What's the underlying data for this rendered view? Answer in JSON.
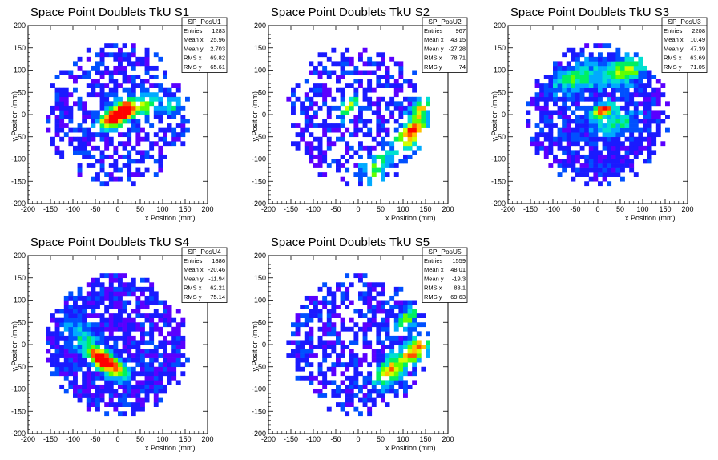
{
  "chart_data": [
    {
      "type": "heatmap",
      "title": "Space Point Doublets TkU S1",
      "xlabel": "x Position (mm)",
      "ylabel": "y Position (mm)",
      "xlim": [
        -200,
        200
      ],
      "ylim": [
        -200,
        200
      ],
      "xticks": [
        -200,
        -150,
        -100,
        -50,
        0,
        50,
        100,
        150,
        200
      ],
      "yticks": [
        -200,
        -150,
        -100,
        -50,
        0,
        50,
        100,
        150,
        200
      ],
      "stats": {
        "name": "SP_PosU1",
        "rows": [
          {
            "label": "Entries",
            "value": "1283"
          },
          {
            "label": "Mean x",
            "value": "25.96"
          },
          {
            "label": "Mean y",
            "value": "2.703"
          },
          {
            "label": "RMS x",
            "value": "69.82"
          },
          {
            "label": "RMS y",
            "value": "65.61"
          }
        ]
      },
      "density": {
        "occupancy": 0.58,
        "radius": 160,
        "hotspots": [
          {
            "x": 10,
            "y": 10,
            "strength": 1.0,
            "spread": 25
          },
          {
            "x": -10,
            "y": -10,
            "strength": 0.8,
            "spread": 22
          },
          {
            "x": 60,
            "y": 20,
            "strength": 0.5,
            "spread": 25
          },
          {
            "x": 120,
            "y": 20,
            "strength": 0.35,
            "spread": 20
          }
        ],
        "band_angle": 30,
        "seed": 11
      }
    },
    {
      "type": "heatmap",
      "title": "Space Point Doublets TkU S2",
      "xlabel": "x Position (mm)",
      "ylabel": "y Position (mm)",
      "xlim": [
        -200,
        200
      ],
      "ylim": [
        -200,
        200
      ],
      "xticks": [
        -200,
        -150,
        -100,
        -50,
        0,
        50,
        100,
        150,
        200
      ],
      "yticks": [
        -200,
        -150,
        -100,
        -50,
        0,
        50,
        100,
        150,
        200
      ],
      "stats": {
        "name": "SP_PosU2",
        "rows": [
          {
            "label": "Entries",
            "value": "967"
          },
          {
            "label": "Mean x",
            "value": "43.15"
          },
          {
            "label": "Mean y",
            "value": "-27.28"
          },
          {
            "label": "RMS x",
            "value": "78.71"
          },
          {
            "label": "RMS y",
            "value": "74"
          }
        ]
      },
      "density": {
        "occupancy": 0.5,
        "radius": 160,
        "hotspots": [
          {
            "x": 120,
            "y": -40,
            "strength": 0.9,
            "spread": 30
          },
          {
            "x": 140,
            "y": 20,
            "strength": 0.6,
            "spread": 20
          },
          {
            "x": -20,
            "y": 20,
            "strength": 0.7,
            "spread": 18
          },
          {
            "x": 40,
            "y": -120,
            "strength": 0.5,
            "spread": 30
          }
        ],
        "band_angle": 55,
        "seed": 23
      }
    },
    {
      "type": "heatmap",
      "title": "Space Point Doublets TkU S3",
      "xlabel": "x Position (mm)",
      "ylabel": "y Position (mm)",
      "xlim": [
        -200,
        200
      ],
      "ylim": [
        -200,
        200
      ],
      "xticks": [
        -200,
        -150,
        -100,
        -50,
        0,
        50,
        100,
        150,
        200
      ],
      "yticks": [
        -200,
        -150,
        -100,
        -50,
        0,
        50,
        100,
        150,
        200
      ],
      "stats": {
        "name": "SP_PosU3",
        "rows": [
          {
            "label": "Entries",
            "value": "2208"
          },
          {
            "label": "Mean x",
            "value": "10.49"
          },
          {
            "label": "Mean y",
            "value": "47.39"
          },
          {
            "label": "RMS x",
            "value": "63.69"
          },
          {
            "label": "RMS y",
            "value": "71.05"
          }
        ]
      },
      "density": {
        "occupancy": 0.78,
        "radius": 160,
        "hotspots": [
          {
            "x": 10,
            "y": 10,
            "strength": 1.0,
            "spread": 18
          },
          {
            "x": 60,
            "y": 100,
            "strength": 0.6,
            "spread": 35
          },
          {
            "x": -50,
            "y": 80,
            "strength": 0.45,
            "spread": 35
          },
          {
            "x": 40,
            "y": -20,
            "strength": 0.4,
            "spread": 30
          }
        ],
        "band_angle": 20,
        "seed": 37
      }
    },
    {
      "type": "heatmap",
      "title": "Space Point Doublets TkU S4",
      "xlabel": "x Position (mm)",
      "ylabel": "y Position (mm)",
      "xlim": [
        -200,
        200
      ],
      "ylim": [
        -200,
        200
      ],
      "xticks": [
        -200,
        -150,
        -100,
        -50,
        0,
        50,
        100,
        150,
        200
      ],
      "yticks": [
        -200,
        -150,
        -100,
        -50,
        0,
        50,
        100,
        150,
        200
      ],
      "stats": {
        "name": "SP_PosU4",
        "rows": [
          {
            "label": "Entries",
            "value": "1886"
          },
          {
            "label": "Mean x",
            "value": "-20.46"
          },
          {
            "label": "Mean y",
            "value": "-11.94"
          },
          {
            "label": "RMS x",
            "value": "62.21"
          },
          {
            "label": "RMS y",
            "value": "75.14"
          }
        ]
      },
      "density": {
        "occupancy": 0.8,
        "radius": 160,
        "hotspots": [
          {
            "x": -40,
            "y": -30,
            "strength": 1.0,
            "spread": 22
          },
          {
            "x": -10,
            "y": -50,
            "strength": 0.7,
            "spread": 25
          },
          {
            "x": -80,
            "y": 20,
            "strength": 0.3,
            "spread": 30
          }
        ],
        "band_angle": -35,
        "seed": 53
      }
    },
    {
      "type": "heatmap",
      "title": "Space Point Doublets TkU S5",
      "xlabel": "x Position (mm)",
      "ylabel": "y Position (mm)",
      "xlim": [
        -200,
        200
      ],
      "ylim": [
        -200,
        200
      ],
      "xticks": [
        -200,
        -150,
        -100,
        -50,
        0,
        50,
        100,
        150,
        200
      ],
      "yticks": [
        -200,
        -150,
        -100,
        -50,
        0,
        50,
        100,
        150,
        200
      ],
      "stats": {
        "name": "SP_PosU5",
        "rows": [
          {
            "label": "Entries",
            "value": "1559"
          },
          {
            "label": "Mean x",
            "value": "48.01"
          },
          {
            "label": "Mean y",
            "value": "-19.3"
          },
          {
            "label": "RMS x",
            "value": "83.1"
          },
          {
            "label": "RMS y",
            "value": "69.63"
          }
        ]
      },
      "density": {
        "occupancy": 0.6,
        "radius": 160,
        "hotspots": [
          {
            "x": 130,
            "y": -10,
            "strength": 0.9,
            "spread": 25
          },
          {
            "x": 70,
            "y": -60,
            "strength": 0.7,
            "spread": 30
          },
          {
            "x": 110,
            "y": 60,
            "strength": 0.5,
            "spread": 20
          }
        ],
        "band_angle": 50,
        "seed": 71
      }
    }
  ],
  "colors": {
    "palette": [
      "#5a00ff",
      "#1a1aff",
      "#0050ff",
      "#00aaff",
      "#00e0d0",
      "#00f060",
      "#60ff00",
      "#d0ff00",
      "#ffc000",
      "#ff5000",
      "#ff0000"
    ],
    "axis": "#000000",
    "frame": "#000000",
    "background": "#ffffff"
  }
}
